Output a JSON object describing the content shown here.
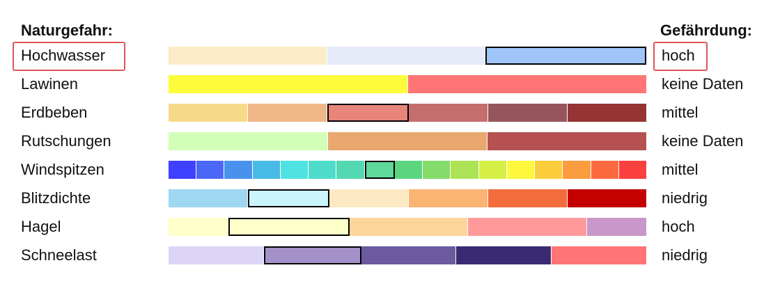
{
  "header": {
    "left": "Naturgefahr:",
    "right": "Gefährdung:"
  },
  "highlight_color": "#e05555",
  "rows": [
    {
      "label": "Hochwasser",
      "value": "hoch",
      "highlighted": true,
      "selected_index": 2,
      "segments": [
        "#fcebc8",
        "#e6ebfa",
        "#9fc5f8"
      ]
    },
    {
      "label": "Lawinen",
      "value": "keine Daten",
      "highlighted": false,
      "selected_index": -1,
      "segments": [
        "#fcfc3a",
        "#ff7575"
      ]
    },
    {
      "label": "Erdbeben",
      "value": "mittel",
      "highlighted": false,
      "selected_index": 2,
      "segments": [
        "#f7d98a",
        "#efb688",
        "#e8857a",
        "#c46e6e",
        "#96555c",
        "#963434"
      ]
    },
    {
      "label": "Rutschungen",
      "value": "keine Daten",
      "highlighted": false,
      "selected_index": -1,
      "segments": [
        "#d1ffb8",
        "#e8a86e",
        "#b65151"
      ]
    },
    {
      "label": "Windspitzen",
      "value": "mittel",
      "highlighted": false,
      "selected_index": 7,
      "segments": [
        "#4040ff",
        "#4a67f6",
        "#4a91ee",
        "#48bae6",
        "#4fe2e2",
        "#4fdccb",
        "#53d9b2",
        "#5fd99a",
        "#5bd67f",
        "#84db6a",
        "#ace456",
        "#d6ef46",
        "#fdf73e",
        "#fbcd3c",
        "#fb9c3e",
        "#fb6a3f",
        "#fb4040"
      ]
    },
    {
      "label": "Blitzdichte",
      "value": "niedrig",
      "highlighted": false,
      "selected_index": 1,
      "segments": [
        "#9fd6f1",
        "#cbf5fd",
        "#fce9c3",
        "#fcb473",
        "#f26c3c",
        "#c50000"
      ]
    },
    {
      "label": "Hagel",
      "value": "hoch",
      "highlighted": false,
      "selected_index": 1,
      "selected_span": 2,
      "segments": [
        "#ffffc9",
        "#ffffc9",
        "#fdd59a",
        "#fdd59a",
        "#ff9a9a",
        "#ff9a9a",
        "#c997c9",
        "#c997c9"
      ],
      "segment_groups": [
        1,
        2,
        2,
        2,
        1
      ]
    },
    {
      "label": "Schneelast",
      "value": "niedrig",
      "highlighted": false,
      "selected_index": 1,
      "segments": [
        "#ddd5f5",
        "#a491c9",
        "#6b5a9e",
        "#3a2a72",
        "#ff7575"
      ]
    }
  ]
}
